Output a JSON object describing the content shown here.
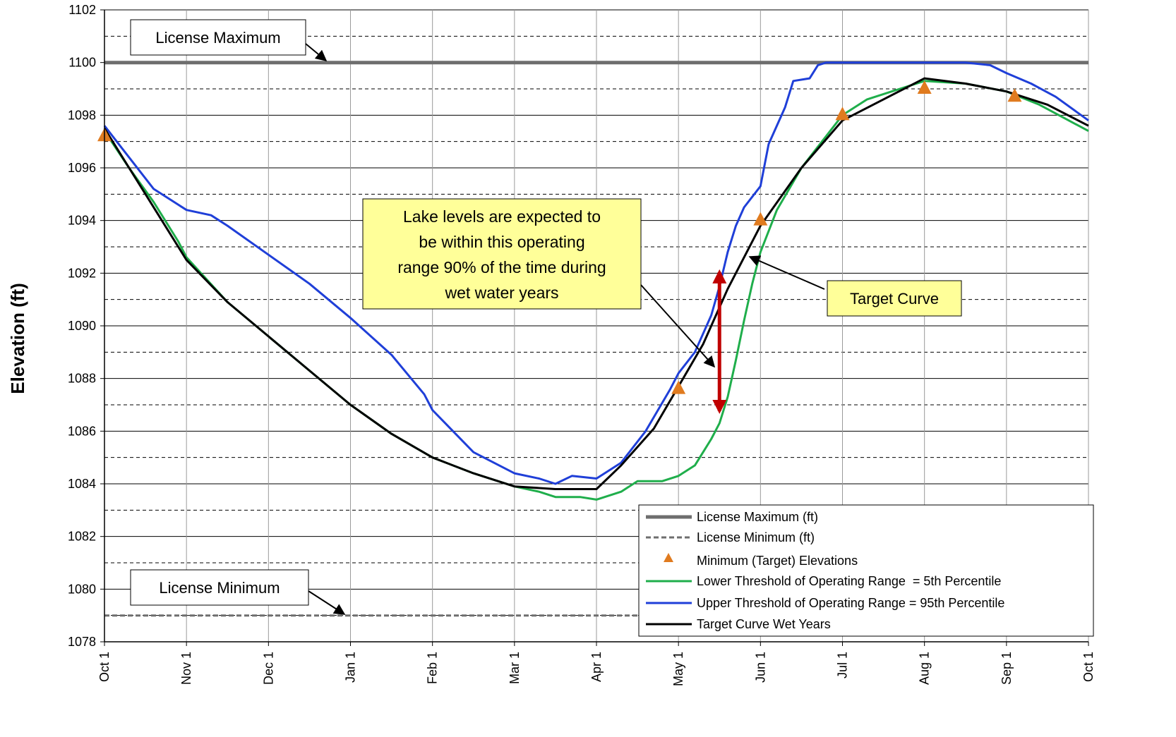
{
  "chart_data": {
    "type": "line",
    "title": "",
    "ylabel": "Elevation (ft)",
    "xlabel": "",
    "ylim": [
      1078,
      1102
    ],
    "y_ticks": [
      1078,
      1080,
      1082,
      1084,
      1086,
      1088,
      1090,
      1092,
      1094,
      1096,
      1098,
      1100,
      1102
    ],
    "x_ticks": [
      "Oct 1",
      "Nov 1",
      "Dec 1",
      "Jan 1",
      "Feb 1",
      "Mar 1",
      "Apr 1",
      "May 1",
      "Jun 1",
      "Jul 1",
      "Aug 1",
      "Sep 1",
      "Oct 1"
    ],
    "x_range_months": [
      0,
      12
    ],
    "grid": "horizontal and vertical",
    "legend_position": "bottom-right",
    "series": [
      {
        "name": "License Maximum (ft)",
        "style": "solid",
        "color": "#6e6e6e",
        "points": [
          [
            0,
            1100
          ],
          [
            12,
            1100
          ]
        ]
      },
      {
        "name": "License Minimum (ft)",
        "style": "dashed",
        "color": "#6e6e6e",
        "points": [
          [
            0,
            1079
          ],
          [
            12,
            1079
          ]
        ]
      },
      {
        "name": "Minimum (Target) Elevations",
        "style": "marker",
        "color": "#e07b1f",
        "points": [
          [
            0,
            1097.2
          ],
          [
            7,
            1087.6
          ],
          [
            8,
            1094
          ],
          [
            9,
            1098
          ],
          [
            10,
            1099
          ],
          [
            11.1,
            1098.7
          ]
        ]
      },
      {
        "name": "Lower Threshold of Operating Range  = 5th Percentile",
        "style": "solid",
        "color": "#1fae4b",
        "points": [
          [
            0,
            1097.4
          ],
          [
            0.3,
            1096
          ],
          [
            0.6,
            1094.7
          ],
          [
            0.9,
            1093.2
          ],
          [
            1,
            1092.6
          ],
          [
            1.5,
            1090.9
          ],
          [
            2,
            1089.6
          ],
          [
            2.5,
            1088.3
          ],
          [
            3,
            1087
          ],
          [
            3.5,
            1085.9
          ],
          [
            4,
            1085
          ],
          [
            4.5,
            1084.4
          ],
          [
            5,
            1083.9
          ],
          [
            5.3,
            1083.7
          ],
          [
            5.5,
            1083.5
          ],
          [
            5.8,
            1083.5
          ],
          [
            6,
            1083.4
          ],
          [
            6.3,
            1083.7
          ],
          [
            6.5,
            1084.1
          ],
          [
            6.8,
            1084.1
          ],
          [
            7,
            1084.3
          ],
          [
            7.2,
            1084.7
          ],
          [
            7.4,
            1085.7
          ],
          [
            7.5,
            1086.3
          ],
          [
            7.6,
            1087.3
          ],
          [
            7.7,
            1088.7
          ],
          [
            7.8,
            1090.2
          ],
          [
            7.9,
            1091.6
          ],
          [
            8,
            1092.8
          ],
          [
            8.2,
            1094.4
          ],
          [
            8.5,
            1096
          ],
          [
            8.8,
            1097.2
          ],
          [
            9,
            1098
          ],
          [
            9.3,
            1098.6
          ],
          [
            9.6,
            1098.9
          ],
          [
            10,
            1099.3
          ],
          [
            10.5,
            1099.2
          ],
          [
            11,
            1098.9
          ],
          [
            11.4,
            1098.4
          ],
          [
            11.7,
            1097.9
          ],
          [
            12,
            1097.4
          ]
        ]
      },
      {
        "name": "Upper Threshold of Operating Range = 95th Percentile",
        "style": "solid",
        "color": "#1f3fd8",
        "points": [
          [
            0,
            1097.6
          ],
          [
            0.3,
            1096.4
          ],
          [
            0.6,
            1095.2
          ],
          [
            0.9,
            1094.6
          ],
          [
            1,
            1094.4
          ],
          [
            1.3,
            1094.2
          ],
          [
            1.5,
            1093.8
          ],
          [
            2,
            1092.7
          ],
          [
            2.5,
            1091.6
          ],
          [
            3,
            1090.3
          ],
          [
            3.5,
            1088.9
          ],
          [
            3.9,
            1087.4
          ],
          [
            4,
            1086.8
          ],
          [
            4.5,
            1085.2
          ],
          [
            5,
            1084.4
          ],
          [
            5.3,
            1084.2
          ],
          [
            5.5,
            1084
          ],
          [
            5.7,
            1084.3
          ],
          [
            6,
            1084.2
          ],
          [
            6.3,
            1084.8
          ],
          [
            6.6,
            1086
          ],
          [
            6.9,
            1087.6
          ],
          [
            7,
            1088.2
          ],
          [
            7.2,
            1089
          ],
          [
            7.4,
            1090.4
          ],
          [
            7.5,
            1091.5
          ],
          [
            7.6,
            1092.8
          ],
          [
            7.7,
            1093.8
          ],
          [
            7.8,
            1094.5
          ],
          [
            8,
            1095.3
          ],
          [
            8.1,
            1096.9
          ],
          [
            8.3,
            1098.3
          ],
          [
            8.4,
            1099.3
          ],
          [
            8.6,
            1099.4
          ],
          [
            8.7,
            1099.9
          ],
          [
            8.8,
            1100
          ],
          [
            9,
            1100
          ],
          [
            9.5,
            1100
          ],
          [
            10,
            1100
          ],
          [
            10.5,
            1100
          ],
          [
            10.8,
            1099.9
          ],
          [
            11,
            1099.6
          ],
          [
            11.3,
            1099.2
          ],
          [
            11.6,
            1098.7
          ],
          [
            12,
            1097.8
          ]
        ]
      },
      {
        "name": "Target Curve Wet Years",
        "style": "solid",
        "color": "#000000",
        "points": [
          [
            0,
            1097.5
          ],
          [
            0.5,
            1095
          ],
          [
            1,
            1092.5
          ],
          [
            1.5,
            1090.9
          ],
          [
            2,
            1089.6
          ],
          [
            2.5,
            1088.3
          ],
          [
            3,
            1087
          ],
          [
            3.5,
            1085.9
          ],
          [
            4,
            1085
          ],
          [
            4.5,
            1084.4
          ],
          [
            5,
            1083.9
          ],
          [
            5.5,
            1083.8
          ],
          [
            6,
            1083.8
          ],
          [
            6.3,
            1084.7
          ],
          [
            6.7,
            1086.1
          ],
          [
            7,
            1087.7
          ],
          [
            7.3,
            1089.3
          ],
          [
            7.6,
            1091.4
          ],
          [
            8,
            1093.8
          ],
          [
            8.5,
            1096
          ],
          [
            9,
            1097.8
          ],
          [
            9.5,
            1098.6
          ],
          [
            10,
            1099.4
          ],
          [
            10.5,
            1099.2
          ],
          [
            11,
            1098.9
          ],
          [
            11.5,
            1098.4
          ],
          [
            12,
            1097.6
          ]
        ]
      }
    ],
    "annotations": {
      "license_max_label": "License Maximum",
      "license_min_label": "License Minimum",
      "target_curve_label": "Target Curve",
      "range_note_lines": [
        "Lake levels are expected to",
        "be within this operating",
        "range 90% of the time during",
        "wet water years"
      ],
      "range_arrow": {
        "x": 7.5,
        "y_top": 1092.2,
        "y_bottom": 1086.6,
        "color": "#c00000"
      }
    }
  }
}
